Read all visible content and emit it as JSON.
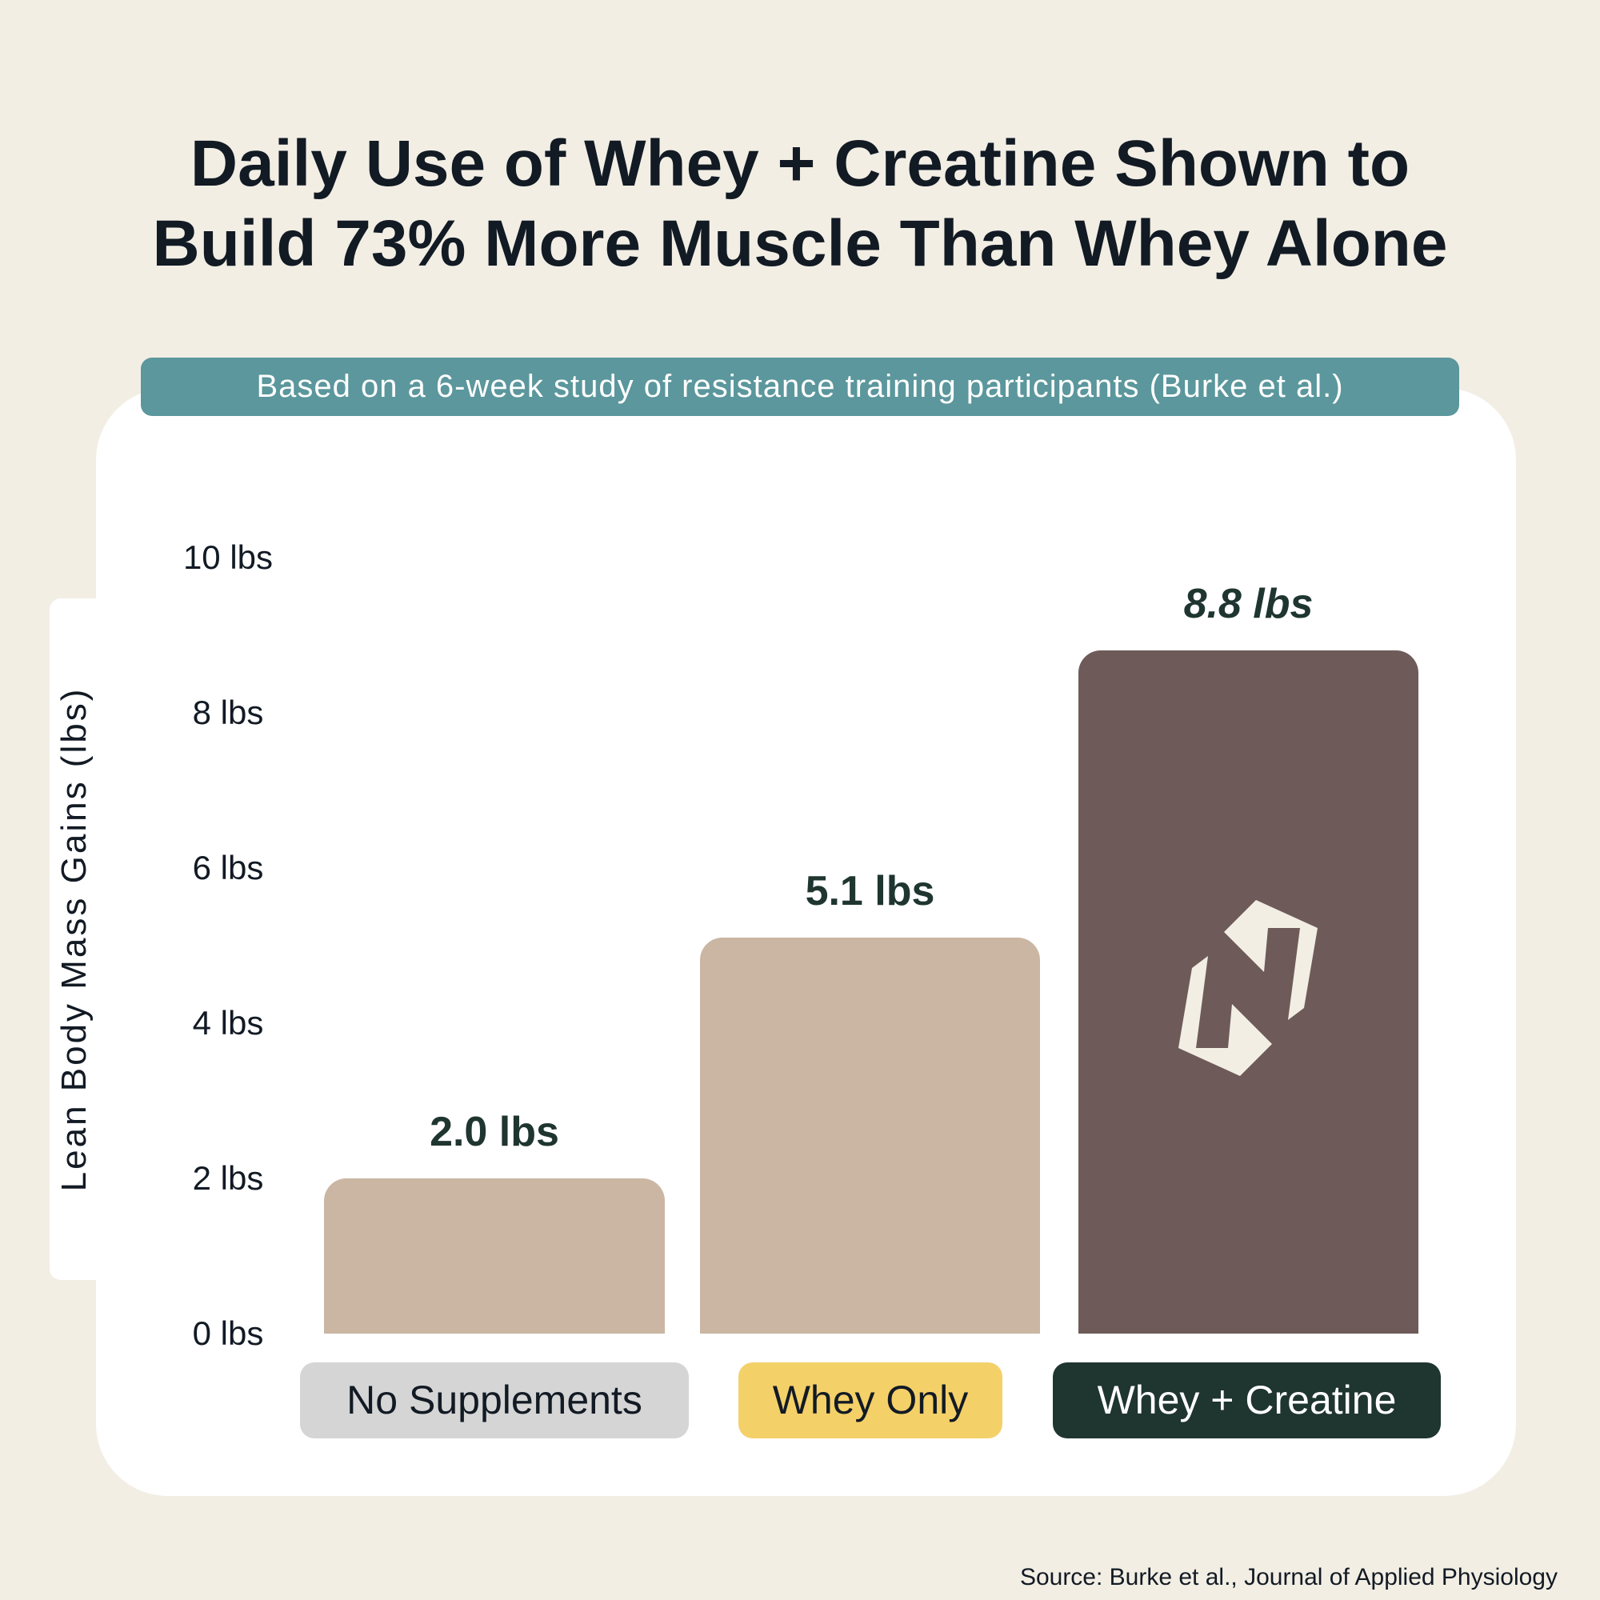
{
  "title_lines": [
    "Daily Use of Whey + Creatine Shown to",
    "Build 73% More Muscle Than Whey Alone"
  ],
  "subtitle": "Based on a 6-week study of resistance training participants (Burke et al.)",
  "source": "Source: Burke et al., Journal of Applied Physiology",
  "colors": {
    "background": "#f2eee4",
    "card": "#ffffff",
    "subtitle_pill": "#5b979c",
    "bar_light": "#cab6a3",
    "bar_dark": "#6e5b59",
    "pill_gray": "#d5d5d5",
    "pill_yellow": "#f4d068",
    "pill_dark": "#1f3530",
    "logo": "#f2eee4"
  },
  "logo_icon": "brand-arrows-icon",
  "chart_data": {
    "type": "bar",
    "ylabel": "Lean Body Mass Gains (lbs)",
    "ylim": [
      0,
      10
    ],
    "yticks": [
      {
        "value": 0,
        "label": "0 lbs"
      },
      {
        "value": 2,
        "label": "2 lbs"
      },
      {
        "value": 4,
        "label": "4 lbs"
      },
      {
        "value": 6,
        "label": "6 lbs"
      },
      {
        "value": 8,
        "label": "8 lbs"
      },
      {
        "value": 10,
        "label": "10 lbs"
      }
    ],
    "grid": false,
    "categories": [
      "No Supplements",
      "Whey Only",
      "Whey + Creatine"
    ],
    "values": [
      2.0,
      5.1,
      8.8
    ],
    "data_labels": [
      "2.0 lbs",
      "5.1 lbs",
      "8.8 lbs"
    ]
  }
}
